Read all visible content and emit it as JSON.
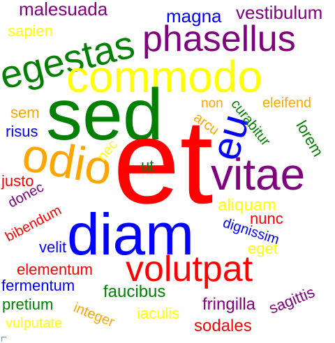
{
  "colors": {
    "purple": "#800080",
    "yellow": "#ffff00",
    "green": "#008000",
    "blue": "#0000ff",
    "red": "#ff0000",
    "orange": "#ffa500"
  },
  "words": {
    "malesuada": "malesuada",
    "magna": "magna",
    "vestibulum": "vestibulum",
    "sapien": "sapien",
    "phasellus": "phasellus",
    "egestas": "egestas",
    "commodo": "commodo",
    "sed": "sed",
    "eu": "eu",
    "non": "non",
    "curabitur": "curabitur",
    "eleifend": "eleifend",
    "sem": "sem",
    "arcu": "arcu",
    "lorem": "lorem",
    "risus": "risus",
    "odio": "odio",
    "et": "et",
    "vitae": "vitae",
    "nec": "nec",
    "ut": "ut",
    "justo": "justo",
    "donec": "donec",
    "aliquam": "aliquam",
    "bibendum": "bibendum",
    "diam": "diam",
    "nunc": "nunc",
    "dignissim": "dignissim",
    "velit": "velit",
    "eget": "eget",
    "volutpat": "volutpat",
    "elementum": "elementum",
    "fermentum": "fermentum",
    "faucibus": "faucibus",
    "pretium": "pretium",
    "integer": "integer",
    "fringilla": "fringilla",
    "sagittis": "sagittis",
    "vulputate": "vulputate",
    "iaculis": "iaculis",
    "sodales": "sodales"
  }
}
